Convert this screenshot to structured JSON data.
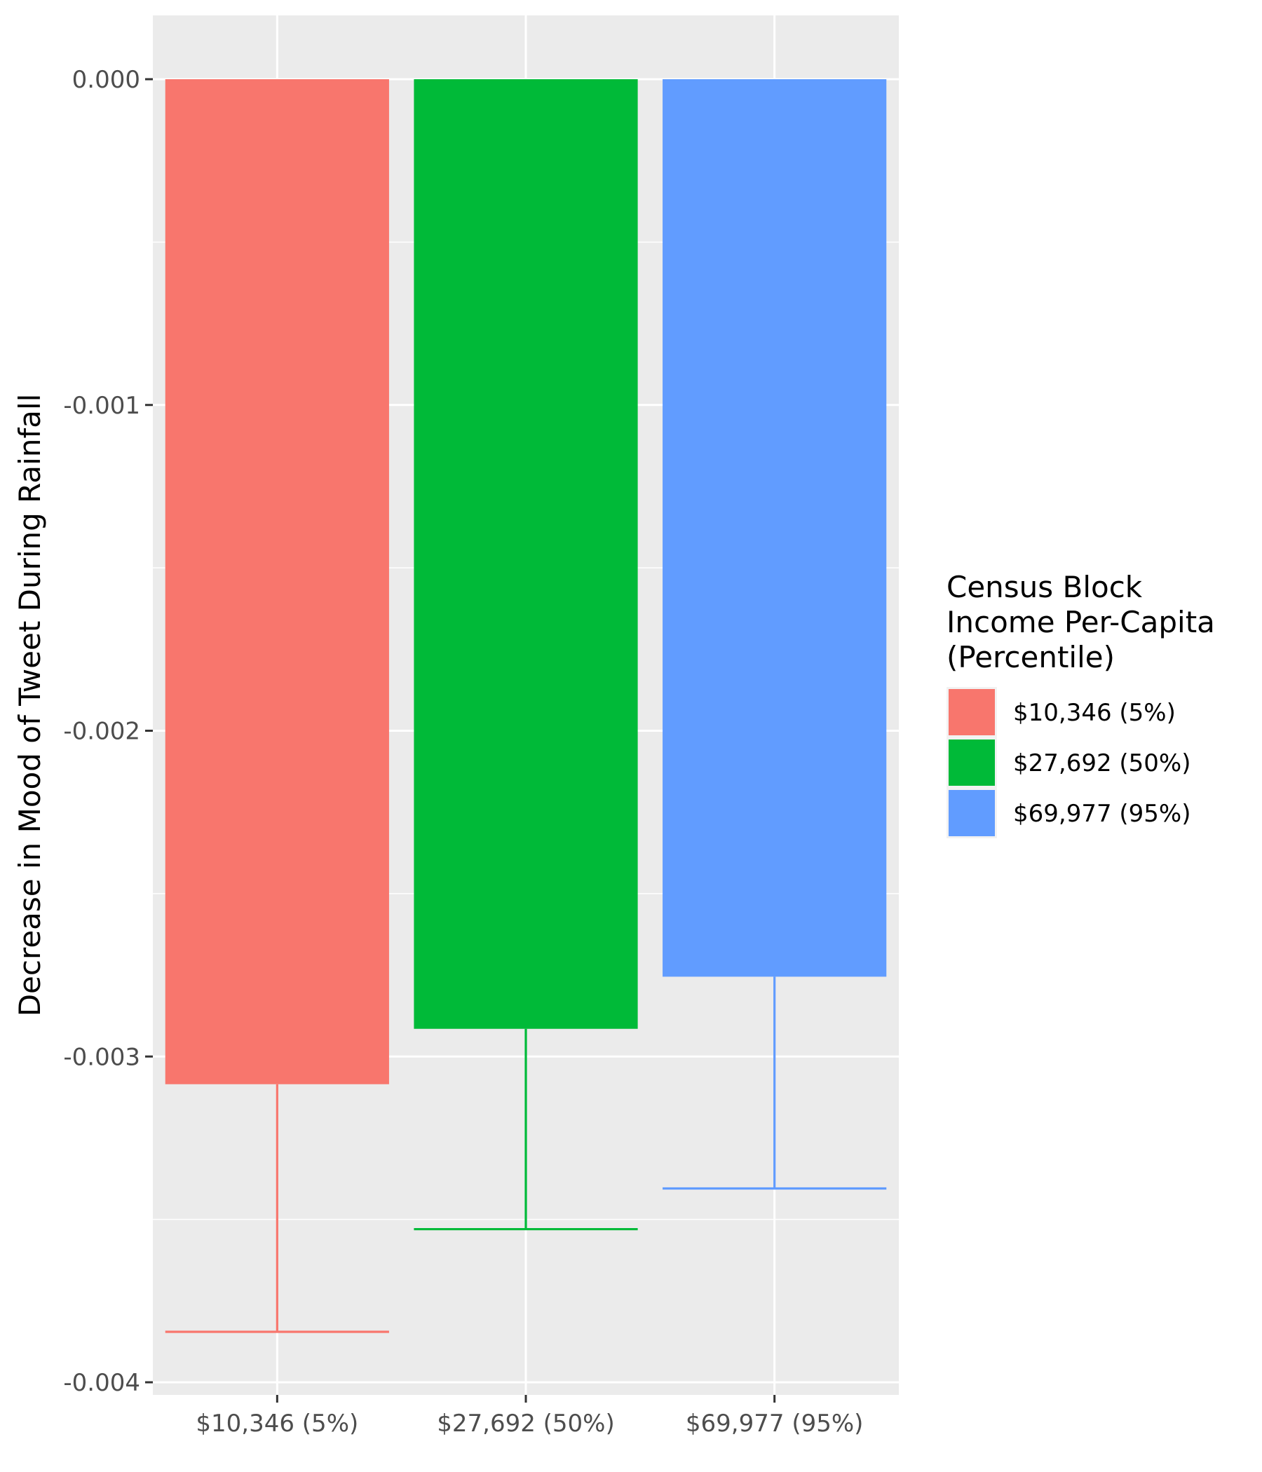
{
  "chart_data": {
    "type": "bar",
    "title": "",
    "xlabel": "",
    "ylabel": "Decrease in Mood of Tweet During Rainfall",
    "categories": [
      "$10,346 (5%)",
      "$27,692 (50%)",
      "$69,977 (95%)"
    ],
    "values": [
      -0.003085,
      -0.002915,
      -0.002755
    ],
    "error_bar_lower": [
      -0.003845,
      -0.00353,
      -0.003405
    ],
    "colors": [
      "#F8766D",
      "#00BA38",
      "#619CFF"
    ],
    "ylim": [
      -0.00404,
      0.000195
    ],
    "y_ticks": [
      0.0,
      -0.001,
      -0.002,
      -0.003,
      -0.004
    ],
    "y_tick_labels": [
      "0.000",
      "-0.001",
      "-0.002",
      "-0.003",
      "-0.004"
    ],
    "grid": true,
    "legend": {
      "title_lines": [
        "Census Block",
        "Income Per-Capita",
        "(Percentile)"
      ],
      "entries": [
        "$10,346 (5%)",
        "$27,692 (50%)",
        "$69,977 (95%)"
      ],
      "position": "right"
    }
  }
}
